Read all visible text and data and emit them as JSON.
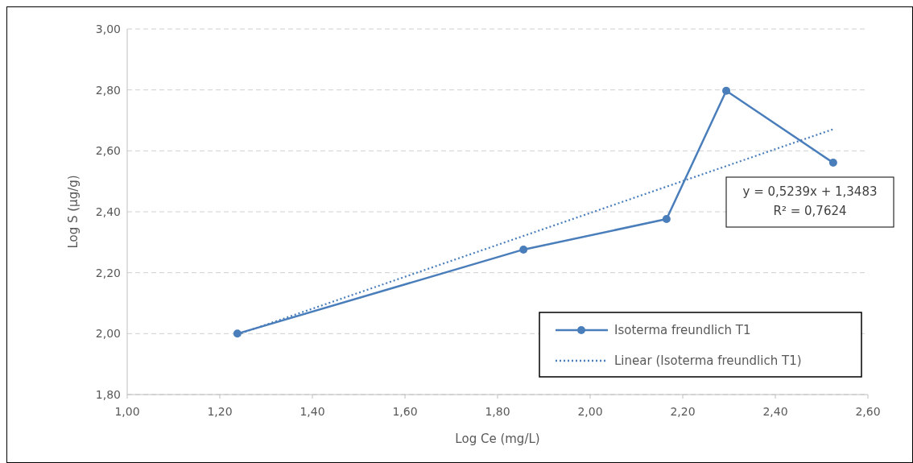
{
  "chart_data": {
    "type": "line",
    "xlabel": "Log Ce (mg/L)",
    "ylabel": "Log S (µg/g)",
    "xlim": [
      1.0,
      2.6
    ],
    "xticks": [
      {
        "value": 1.0,
        "label": "1,00"
      },
      {
        "value": 1.2,
        "label": "1,20"
      },
      {
        "value": 1.4,
        "label": "1,40"
      },
      {
        "value": 1.6,
        "label": "1,60"
      },
      {
        "value": 1.8,
        "label": "1,80"
      },
      {
        "value": 2.0,
        "label": "2,00"
      },
      {
        "value": 2.2,
        "label": "2,20"
      },
      {
        "value": 2.4,
        "label": "2,40"
      },
      {
        "value": 2.6,
        "label": "2,60"
      }
    ],
    "ylim": [
      1.8,
      3.0
    ],
    "yticks": [
      {
        "value": 1.8,
        "label": "1,80"
      },
      {
        "value": 2.0,
        "label": "2,00"
      },
      {
        "value": 2.2,
        "label": "2,20"
      },
      {
        "value": 2.4,
        "label": "2,40"
      },
      {
        "value": 2.6,
        "label": "2,60"
      },
      {
        "value": 2.8,
        "label": "2,80"
      },
      {
        "value": 3.0,
        "label": "3,00"
      }
    ],
    "grid": "y",
    "legend": "bottom right",
    "series": [
      {
        "name": "Isoterma freundlich T1",
        "color": "#4a7ebb",
        "x": [
          1.238,
          1.856,
          2.165,
          2.294,
          2.525
        ],
        "values": [
          2.0,
          2.276,
          2.376,
          2.797,
          2.561
        ],
        "marker": "circle",
        "line_style": "solid"
      },
      {
        "name": "Linear (Isoterma freundlich T1)",
        "color": "#4a7ebb",
        "x": [
          1.238,
          2.525
        ],
        "values": [
          1.997,
          2.671
        ],
        "marker": "none",
        "line_style": "dotted"
      }
    ],
    "annotations": [
      "y = 0,5239x + 1,3483\nR² = 0,7624"
    ]
  }
}
